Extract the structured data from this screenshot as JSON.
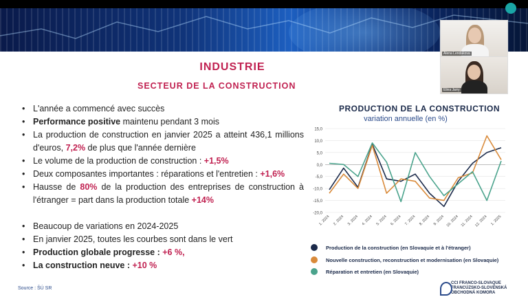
{
  "video": {
    "participant1": "Alena Lendakova",
    "participant2": "Elina Jarry"
  },
  "slide": {
    "title": "INDUSTRIE",
    "subtitle": "SECTEUR DE LA CONSTRUCTION",
    "bullets": {
      "b1": "L'année a commencé avec succès",
      "b2a": "Performance positive",
      "b2b": " maintenu pendant 3 mois",
      "b3a": "La production de construction en janvier 2025 a atteint 436,1 millions d'euros, ",
      "b3b": "7,2%",
      "b3c": " de plus que l'année dernière",
      "b4a": "Le volume de la production de construction : ",
      "b4b": "+1,5%",
      "b5a": "Deux composantes importantes : réparations et l'entretien : ",
      "b5b": "+1,6%",
      "b6a": "Hausse de ",
      "b6b": "80%",
      "b6c": " de la production des entreprises de construction à l'étranger = part dans la production totale ",
      "b6d": "+14%",
      "b7": "Beaucoup de variations en 2024-2025",
      "b8": "En janvier 2025, toutes les courbes sont dans le vert",
      "b9a": "Production globale progresse : ",
      "b9b": "+6 %",
      "b9c": ",",
      "b10a": "La construction neuve :  ",
      "b10b": "+10 %"
    },
    "source": "Source : ŠÚ SR",
    "logo": {
      "line1": "CCI FRANCO-SLOVAQUE",
      "line2": "FRANCÚZSKO-SLOVENSKÁ",
      "line3": "OBCHODNÁ KOMORA"
    }
  },
  "chart_data": {
    "type": "line",
    "title": "PRODUCTION DE LA CONSTRUCTION",
    "subtitle": "variation annuelle (en %)",
    "ylim": [
      -20,
      15
    ],
    "yticks": [
      "15,0",
      "10,0",
      "5,0",
      "0,0",
      "-5,0",
      "-10,0",
      "-15,0",
      "-20,0"
    ],
    "categories": [
      "1. 2024",
      "2. 2024",
      "3. 2024",
      "4. 2024",
      "5. 2024",
      "6. 2024",
      "7. 2024",
      "8. 2024",
      "9. 2024",
      "10. 2024",
      "11. 2024",
      "12. 2024",
      "1. 2025"
    ],
    "series": [
      {
        "name": "Production de la construction (en Slovaquie et à l'étranger)",
        "color": "#1b2a4a",
        "values": [
          -10.5,
          -1.5,
          -9.5,
          8.5,
          -6.0,
          -7.0,
          -4.0,
          -12.0,
          -17.5,
          -7.0,
          0.5,
          5.0,
          7.0
        ]
      },
      {
        "name": "Nouvelle construction, reconstruction et modernisation (en Slovaquie)",
        "color": "#d98a3a",
        "values": [
          -12.0,
          -4.0,
          -10.0,
          8.0,
          -12.0,
          -6.0,
          -7.0,
          -14.0,
          -15.0,
          -5.5,
          -3.5,
          12.0,
          2.0
        ]
      },
      {
        "name": "Réparation et entretien (en Slovaquie)",
        "color": "#4aa38c",
        "values": [
          0.5,
          0.0,
          -5.0,
          9.0,
          1.0,
          -15.5,
          5.0,
          -5.0,
          -13.0,
          -8.0,
          -3.0,
          -15.0,
          1.5
        ]
      }
    ]
  }
}
